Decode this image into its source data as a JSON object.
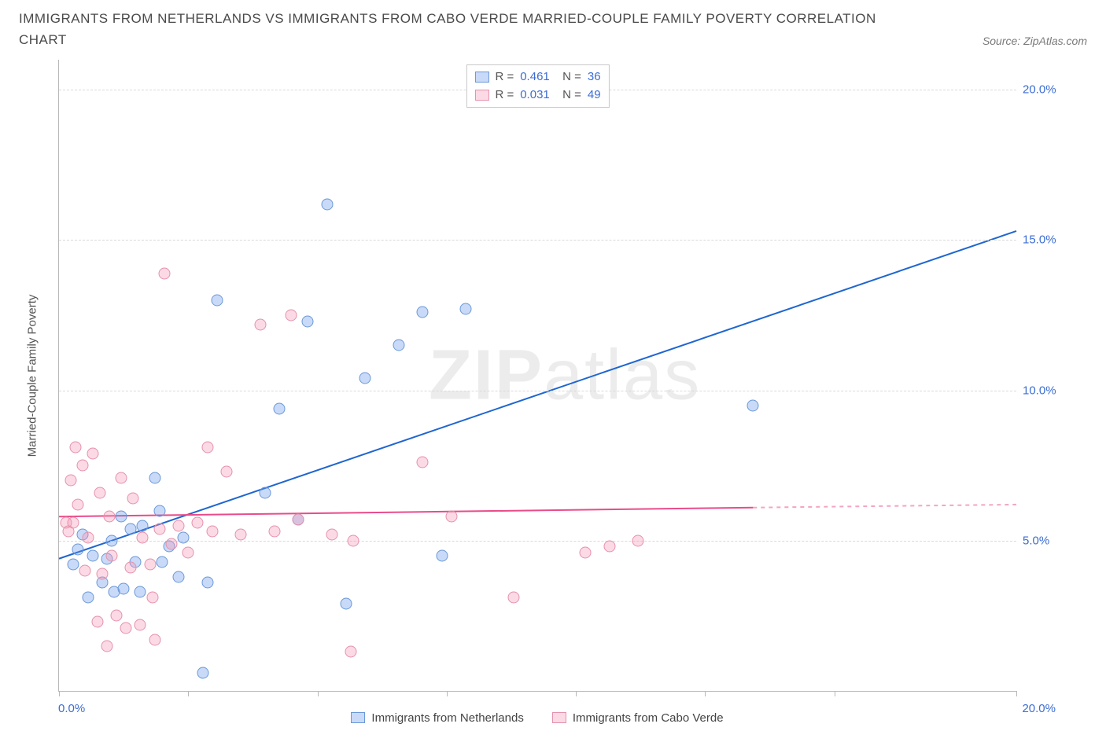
{
  "header": {
    "title": "IMMIGRANTS FROM NETHERLANDS VS IMMIGRANTS FROM CABO VERDE MARRIED-COUPLE FAMILY POVERTY CORRELATION CHART",
    "source": "Source: ZipAtlas.com"
  },
  "chart": {
    "type": "scatter",
    "y_axis_label": "Married-Couple Family Poverty",
    "xlim": [
      0,
      20
    ],
    "ylim": [
      0,
      21
    ],
    "x_tick_positions": [
      0,
      2.7,
      5.4,
      8.1,
      10.8,
      13.5,
      16.2,
      20
    ],
    "x_tick_label_left": "0.0%",
    "x_tick_label_right": "20.0%",
    "y_ticks": [
      {
        "value": 5,
        "label": "5.0%"
      },
      {
        "value": 10,
        "label": "10.0%"
      },
      {
        "value": 15,
        "label": "15.0%"
      },
      {
        "value": 20,
        "label": "20.0%"
      }
    ],
    "grid_color": "#d9d9d9",
    "axis_color": "#b8b8b8",
    "axis_label_color": "#3b6dd4",
    "point_radius": 7.5,
    "series": [
      {
        "name": "Immigrants from Netherlands",
        "color_fill": "rgba(100,150,235,0.35)",
        "color_stroke": "#6a98d8",
        "line_color": "#1f66d0",
        "R": "0.461",
        "N": "36",
        "regression": {
          "x1": 0,
          "y1": 4.4,
          "x2": 20,
          "y2": 15.3
        },
        "points": [
          {
            "x": 0.3,
            "y": 4.2
          },
          {
            "x": 0.4,
            "y": 4.7
          },
          {
            "x": 0.5,
            "y": 5.2
          },
          {
            "x": 0.6,
            "y": 3.1
          },
          {
            "x": 0.7,
            "y": 4.5
          },
          {
            "x": 0.9,
            "y": 3.6
          },
          {
            "x": 1.0,
            "y": 4.4
          },
          {
            "x": 1.1,
            "y": 5.0
          },
          {
            "x": 1.15,
            "y": 3.3
          },
          {
            "x": 1.3,
            "y": 5.8
          },
          {
            "x": 1.35,
            "y": 3.4
          },
          {
            "x": 1.5,
            "y": 5.4
          },
          {
            "x": 1.6,
            "y": 4.3
          },
          {
            "x": 1.7,
            "y": 3.3
          },
          {
            "x": 1.75,
            "y": 5.5
          },
          {
            "x": 2.0,
            "y": 7.1
          },
          {
            "x": 2.1,
            "y": 6.0
          },
          {
            "x": 2.15,
            "y": 4.3
          },
          {
            "x": 2.3,
            "y": 4.8
          },
          {
            "x": 2.5,
            "y": 3.8
          },
          {
            "x": 2.6,
            "y": 5.1
          },
          {
            "x": 3.0,
            "y": 0.6
          },
          {
            "x": 3.1,
            "y": 3.6
          },
          {
            "x": 3.3,
            "y": 13.0
          },
          {
            "x": 4.3,
            "y": 6.6
          },
          {
            "x": 4.6,
            "y": 9.4
          },
          {
            "x": 5.2,
            "y": 12.3
          },
          {
            "x": 5.6,
            "y": 16.2
          },
          {
            "x": 6.0,
            "y": 2.9
          },
          {
            "x": 6.4,
            "y": 10.4
          },
          {
            "x": 7.1,
            "y": 11.5
          },
          {
            "x": 7.6,
            "y": 12.6
          },
          {
            "x": 8.0,
            "y": 4.5
          },
          {
            "x": 8.5,
            "y": 12.7
          },
          {
            "x": 14.5,
            "y": 9.5
          },
          {
            "x": 5.0,
            "y": 5.7
          }
        ]
      },
      {
        "name": "Immigrants from Cabo Verde",
        "color_fill": "rgba(245,150,180,0.35)",
        "color_stroke": "#e591ab",
        "line_color": "#e94b8a",
        "R": "0.031",
        "N": "49",
        "regression": {
          "x1": 0,
          "y1": 5.8,
          "x2": 14.5,
          "y2": 6.1
        },
        "regression_extend": {
          "x1": 14.5,
          "y1": 6.1,
          "x2": 20,
          "y2": 6.2
        },
        "points": [
          {
            "x": 0.15,
            "y": 5.6
          },
          {
            "x": 0.2,
            "y": 5.3
          },
          {
            "x": 0.25,
            "y": 7.0
          },
          {
            "x": 0.3,
            "y": 5.6
          },
          {
            "x": 0.35,
            "y": 8.1
          },
          {
            "x": 0.4,
            "y": 6.2
          },
          {
            "x": 0.5,
            "y": 7.5
          },
          {
            "x": 0.55,
            "y": 4.0
          },
          {
            "x": 0.6,
            "y": 5.1
          },
          {
            "x": 0.7,
            "y": 7.9
          },
          {
            "x": 0.8,
            "y": 2.3
          },
          {
            "x": 0.85,
            "y": 6.6
          },
          {
            "x": 0.9,
            "y": 3.9
          },
          {
            "x": 1.0,
            "y": 1.5
          },
          {
            "x": 1.05,
            "y": 5.8
          },
          {
            "x": 1.1,
            "y": 4.5
          },
          {
            "x": 1.2,
            "y": 2.5
          },
          {
            "x": 1.3,
            "y": 7.1
          },
          {
            "x": 1.4,
            "y": 2.1
          },
          {
            "x": 1.5,
            "y": 4.1
          },
          {
            "x": 1.55,
            "y": 6.4
          },
          {
            "x": 1.7,
            "y": 2.2
          },
          {
            "x": 1.75,
            "y": 5.1
          },
          {
            "x": 1.9,
            "y": 4.2
          },
          {
            "x": 1.95,
            "y": 3.1
          },
          {
            "x": 2.0,
            "y": 1.7
          },
          {
            "x": 2.1,
            "y": 5.4
          },
          {
            "x": 2.2,
            "y": 13.9
          },
          {
            "x": 2.35,
            "y": 4.9
          },
          {
            "x": 2.5,
            "y": 5.5
          },
          {
            "x": 2.7,
            "y": 4.6
          },
          {
            "x": 2.9,
            "y": 5.6
          },
          {
            "x": 3.1,
            "y": 8.1
          },
          {
            "x": 3.2,
            "y": 5.3
          },
          {
            "x": 3.5,
            "y": 7.3
          },
          {
            "x": 3.8,
            "y": 5.2
          },
          {
            "x": 4.2,
            "y": 12.2
          },
          {
            "x": 4.5,
            "y": 5.3
          },
          {
            "x": 4.85,
            "y": 12.5
          },
          {
            "x": 5.0,
            "y": 5.7
          },
          {
            "x": 5.7,
            "y": 5.2
          },
          {
            "x": 6.1,
            "y": 1.3
          },
          {
            "x": 6.15,
            "y": 5.0
          },
          {
            "x": 7.6,
            "y": 7.6
          },
          {
            "x": 8.2,
            "y": 5.8
          },
          {
            "x": 9.5,
            "y": 3.1
          },
          {
            "x": 11.0,
            "y": 4.6
          },
          {
            "x": 11.5,
            "y": 4.8
          },
          {
            "x": 12.1,
            "y": 5.0
          }
        ]
      }
    ],
    "watermark": {
      "bold": "ZIP",
      "rest": "atlas"
    }
  }
}
